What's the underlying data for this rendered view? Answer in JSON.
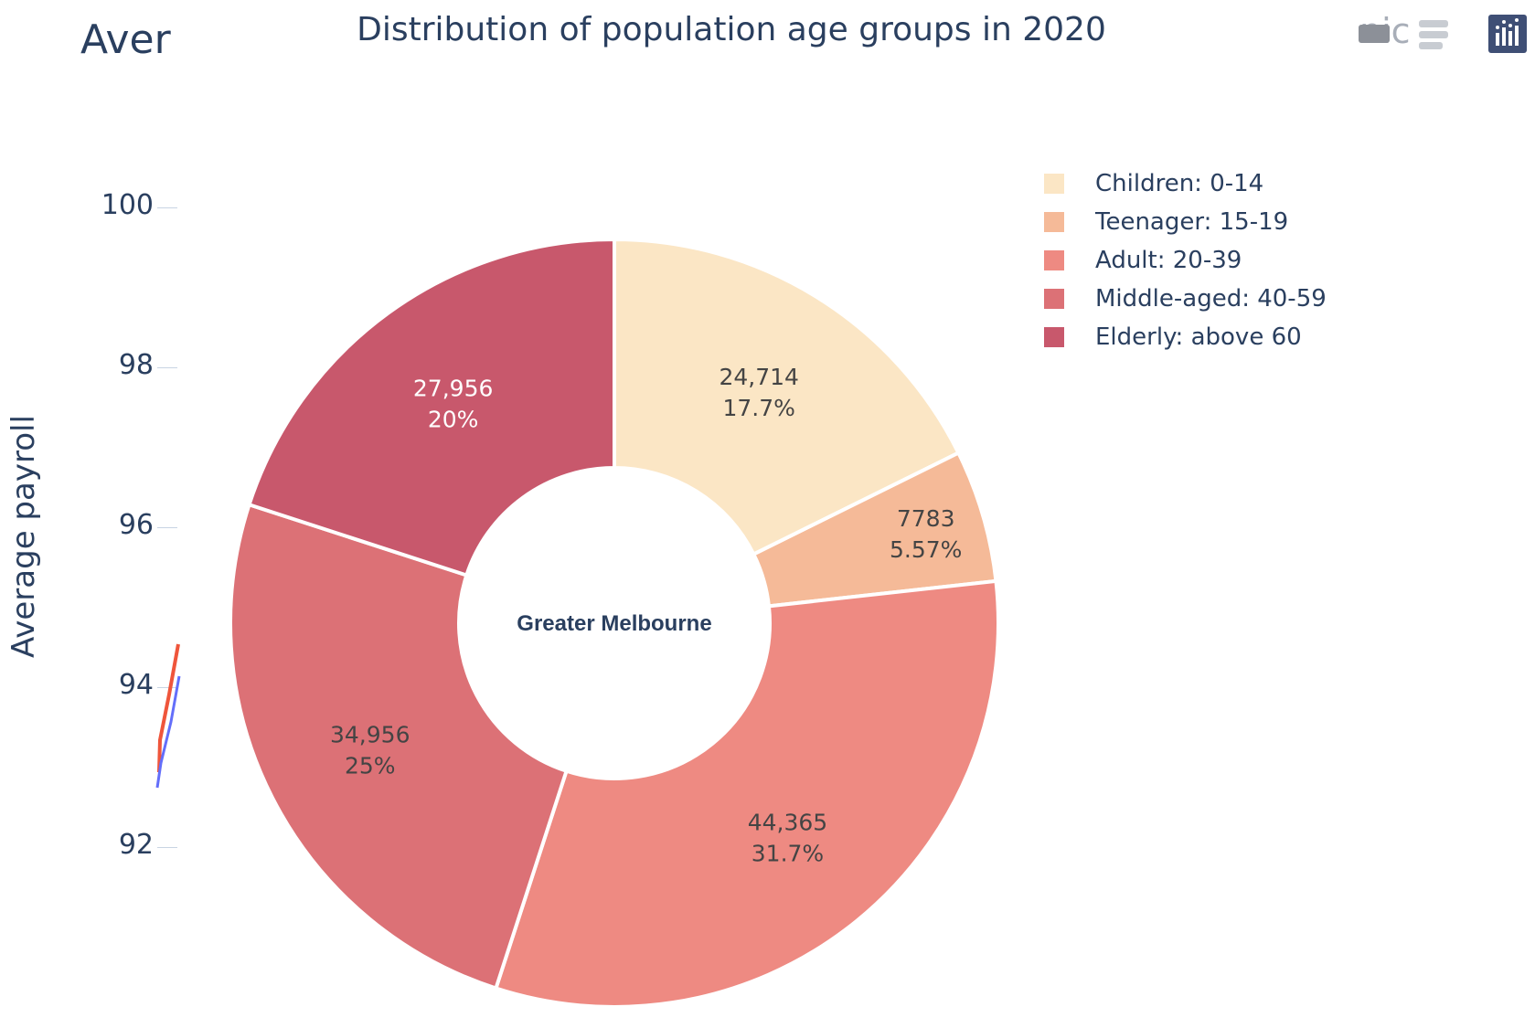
{
  "background_chart": {
    "title_fragment": "Aver",
    "ylabel": "Average payroll",
    "yticks": [
      "100",
      "98",
      "96",
      "94",
      "92"
    ],
    "tick_values": [
      100,
      98,
      96,
      94,
      92
    ]
  },
  "modebar": {
    "text_fragment": "nic",
    "icons": [
      "camera-icon",
      "toolbar-icon",
      "plotly-logo-icon"
    ]
  },
  "chart_data": {
    "type": "pie",
    "hole": true,
    "title": "Distribution of population age groups in 2020",
    "center_label": "Greater Melbourne",
    "categories": [
      "Children: 0-14",
      "Teenager: 15-19",
      "Adult: 20-39",
      "Middle-aged: 40-59",
      "Elderly: above 60"
    ],
    "values": [
      24714,
      7783,
      44365,
      34956,
      27956
    ],
    "value_labels": [
      "24,714",
      "7783",
      "44,365",
      "34,956",
      "27,956"
    ],
    "percent_labels": [
      "17.7%",
      "5.57%",
      "31.7%",
      "25%",
      "20%"
    ],
    "colors": [
      "#fbe6c5",
      "#f5ba98",
      "#ee8a82",
      "#dc7176",
      "#c8586c"
    ],
    "label_colors": [
      "#444444",
      "#444444",
      "#444444",
      "#444444",
      "#ffffff"
    ],
    "legend_position": "top-right"
  }
}
